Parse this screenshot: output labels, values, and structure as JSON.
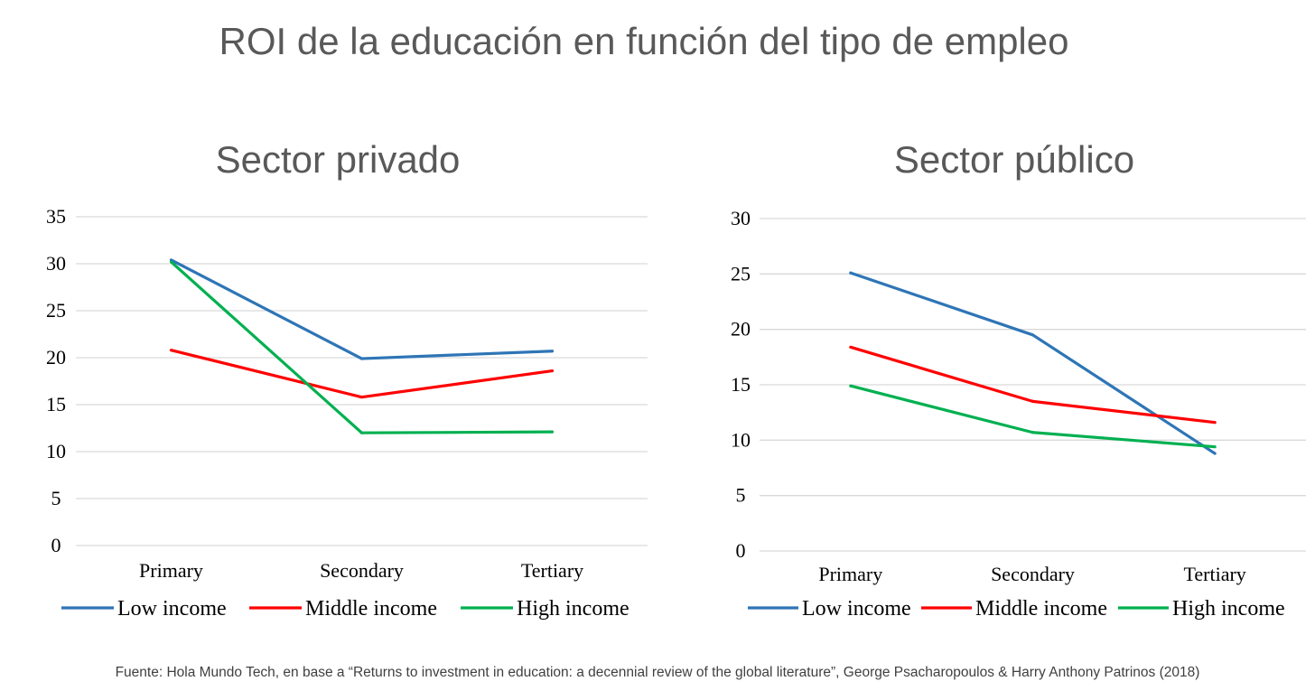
{
  "title": "ROI de la educación en función del tipo de empleo",
  "footnote": "Fuente: Hola Mundo Tech, en base a “Returns to investment in education: a decennial review of the global literature”, George Psacharopoulos & Harry Anthony Patrinos (2018)",
  "chart_data": [
    {
      "type": "line",
      "title": "Sector privado",
      "categories": [
        "Primary",
        "Secondary",
        "Tertiary"
      ],
      "ylim": [
        0,
        35
      ],
      "yticks": [
        0,
        5,
        10,
        15,
        20,
        25,
        30,
        35
      ],
      "grid": true,
      "legend": "bottom",
      "series": [
        {
          "name": "Low income",
          "color": "#2E75B6",
          "values": [
            30.4,
            19.9,
            20.7
          ]
        },
        {
          "name": "Middle income",
          "color": "#FF0000",
          "values": [
            20.8,
            15.8,
            18.6
          ]
        },
        {
          "name": "High income",
          "color": "#00B050",
          "values": [
            30.2,
            12.0,
            12.1
          ]
        }
      ]
    },
    {
      "type": "line",
      "title": "Sector público",
      "categories": [
        "Primary",
        "Secondary",
        "Tertiary"
      ],
      "ylim": [
        0,
        30
      ],
      "yticks": [
        0,
        5,
        10,
        15,
        20,
        25,
        30
      ],
      "grid": true,
      "legend": "bottom",
      "series": [
        {
          "name": "Low income",
          "color": "#2E75B6",
          "values": [
            25.1,
            19.5,
            8.8
          ]
        },
        {
          "name": "Middle income",
          "color": "#FF0000",
          "values": [
            18.4,
            13.5,
            11.6
          ]
        },
        {
          "name": "High income",
          "color": "#00B050",
          "values": [
            14.9,
            10.7,
            9.4
          ]
        }
      ]
    }
  ]
}
